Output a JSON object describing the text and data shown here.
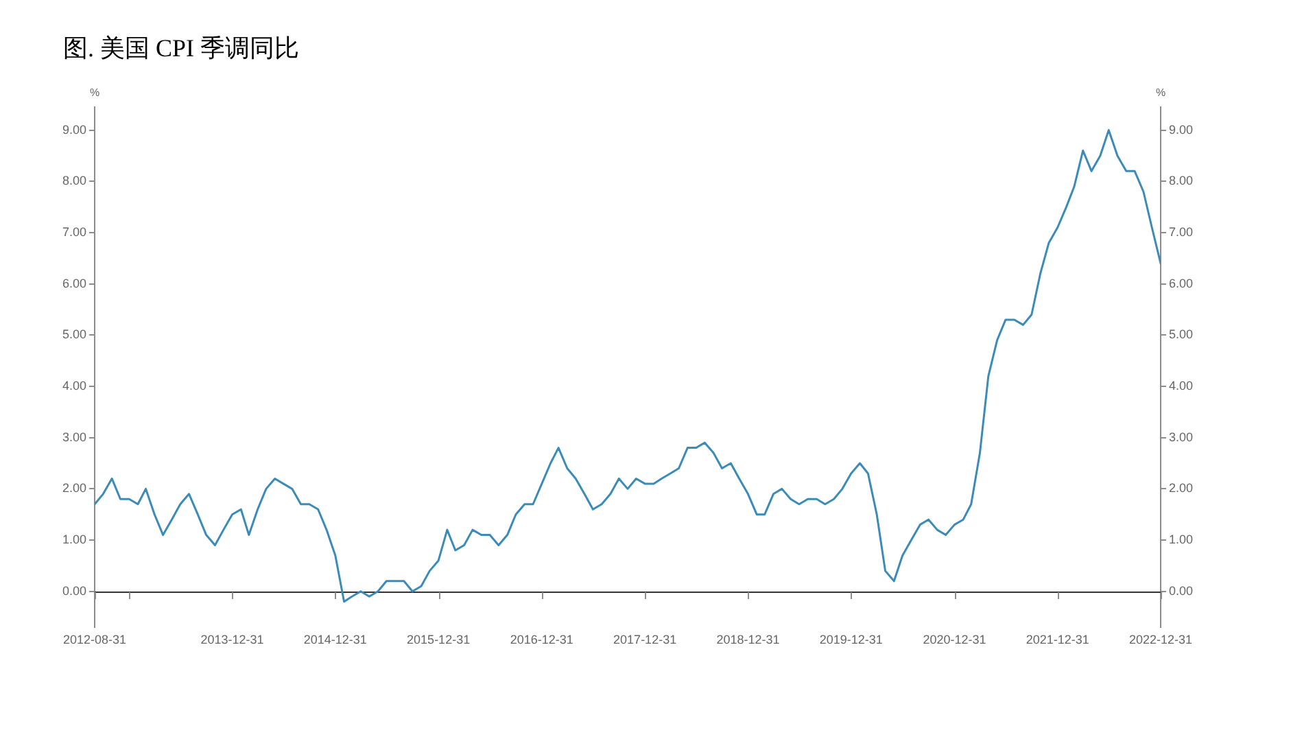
{
  "chart_data": {
    "type": "line",
    "title": "图. 美国 CPI 季调同比",
    "ylabel": "%",
    "y2label": "%",
    "x": [
      "2012-08-31",
      "2012-09-30",
      "2012-10-31",
      "2012-11-30",
      "2012-12-31",
      "2013-01-31",
      "2013-02-28",
      "2013-03-31",
      "2013-04-30",
      "2013-05-31",
      "2013-06-30",
      "2013-07-31",
      "2013-08-31",
      "2013-09-30",
      "2013-10-31",
      "2013-11-30",
      "2013-12-31",
      "2014-01-31",
      "2014-02-28",
      "2014-03-31",
      "2014-04-30",
      "2014-05-31",
      "2014-06-30",
      "2014-07-31",
      "2014-08-31",
      "2014-09-30",
      "2014-10-31",
      "2014-11-30",
      "2014-12-31",
      "2015-01-31",
      "2015-02-28",
      "2015-03-31",
      "2015-04-30",
      "2015-05-31",
      "2015-06-30",
      "2015-07-31",
      "2015-08-31",
      "2015-09-30",
      "2015-10-31",
      "2015-11-30",
      "2015-12-31",
      "2016-01-31",
      "2016-02-29",
      "2016-03-31",
      "2016-04-30",
      "2016-05-31",
      "2016-06-30",
      "2016-07-31",
      "2016-08-31",
      "2016-09-30",
      "2016-10-31",
      "2016-11-30",
      "2016-12-31",
      "2017-01-31",
      "2017-02-28",
      "2017-03-31",
      "2017-04-30",
      "2017-05-31",
      "2017-06-30",
      "2017-07-31",
      "2017-08-31",
      "2017-09-30",
      "2017-10-31",
      "2017-11-30",
      "2017-12-31",
      "2018-01-31",
      "2018-02-28",
      "2018-03-31",
      "2018-04-30",
      "2018-05-31",
      "2018-06-30",
      "2018-07-31",
      "2018-08-31",
      "2018-09-30",
      "2018-10-31",
      "2018-11-30",
      "2018-12-31",
      "2019-01-31",
      "2019-02-28",
      "2019-03-31",
      "2019-04-30",
      "2019-05-31",
      "2019-06-30",
      "2019-07-31",
      "2019-08-31",
      "2019-09-30",
      "2019-10-31",
      "2019-11-30",
      "2019-12-31",
      "2020-01-31",
      "2020-02-29",
      "2020-03-31",
      "2020-04-30",
      "2020-05-31",
      "2020-06-30",
      "2020-07-31",
      "2020-08-31",
      "2020-09-30",
      "2020-10-31",
      "2020-11-30",
      "2020-12-31",
      "2021-01-31",
      "2021-02-28",
      "2021-03-31",
      "2021-04-30",
      "2021-05-31",
      "2021-06-30",
      "2021-07-31",
      "2021-08-31",
      "2021-09-30",
      "2021-10-31",
      "2021-11-30",
      "2021-12-31",
      "2022-01-31",
      "2022-02-28",
      "2022-03-31",
      "2022-04-30",
      "2022-05-31",
      "2022-06-30",
      "2022-07-31",
      "2022-08-31",
      "2022-09-30",
      "2022-10-31",
      "2022-11-30",
      "2022-12-31"
    ],
    "series": [
      {
        "color": "#3b8bba",
        "values": [
          1.7,
          1.9,
          2.2,
          1.8,
          1.8,
          1.7,
          2.0,
          1.5,
          1.1,
          1.4,
          1.7,
          1.9,
          1.5,
          1.1,
          0.9,
          1.2,
          1.5,
          1.6,
          1.1,
          1.6,
          2.0,
          2.2,
          2.1,
          2.0,
          1.7,
          1.7,
          1.6,
          1.2,
          0.7,
          -0.2,
          -0.1,
          0.0,
          -0.1,
          0.0,
          0.2,
          0.2,
          0.2,
          0.0,
          0.1,
          0.4,
          0.6,
          1.2,
          0.8,
          0.9,
          1.2,
          1.1,
          1.1,
          0.9,
          1.1,
          1.5,
          1.7,
          1.7,
          2.1,
          2.5,
          2.8,
          2.4,
          2.2,
          1.9,
          1.6,
          1.7,
          1.9,
          2.2,
          2.0,
          2.2,
          2.1,
          2.1,
          2.2,
          2.3,
          2.4,
          2.8,
          2.8,
          2.9,
          2.7,
          2.4,
          2.5,
          2.2,
          1.9,
          1.5,
          1.5,
          1.9,
          2.0,
          1.8,
          1.7,
          1.8,
          1.8,
          1.7,
          1.8,
          2.0,
          2.3,
          2.5,
          2.3,
          1.5,
          0.4,
          0.2,
          0.7,
          1.0,
          1.3,
          1.4,
          1.2,
          1.1,
          1.3,
          1.4,
          1.7,
          2.7,
          4.2,
          4.9,
          5.3,
          5.3,
          5.2,
          5.4,
          6.2,
          6.8,
          7.1,
          7.5,
          7.9,
          8.6,
          8.2,
          8.5,
          9.0,
          8.5,
          8.2,
          8.2,
          7.8,
          7.1,
          6.4
        ]
      }
    ],
    "xlim": [
      "2012-08-31",
      "2022-12-31"
    ],
    "xticks": [
      "2012-08-31",
      {
        "value": "2012-12-31",
        "label": null
      },
      "2013-12-31",
      "2014-12-31",
      "2015-12-31",
      "2016-12-31",
      "2017-12-31",
      "2018-12-31",
      "2019-12-31",
      "2020-12-31",
      "2021-12-31",
      "2022-12-31"
    ],
    "ylim": [
      -0.7,
      9.45
    ],
    "yticks": [
      {
        "value": 0,
        "label": "0.00"
      },
      {
        "value": 1,
        "label": "1.00"
      },
      {
        "value": 2,
        "label": "2.00"
      },
      {
        "value": 3,
        "label": "3.00"
      },
      {
        "value": 4,
        "label": "4.00"
      },
      {
        "value": 5,
        "label": "5.00"
      },
      {
        "value": 6,
        "label": "6.00"
      },
      {
        "value": 7,
        "label": "7.00"
      },
      {
        "value": 8,
        "label": "8.00"
      },
      {
        "value": 9,
        "label": "9.00"
      }
    ],
    "y2lim": [
      -0.7,
      9.45
    ],
    "y2ticks": [
      {
        "value": 0,
        "label": "0.00"
      },
      {
        "value": 1,
        "label": "1.00"
      },
      {
        "value": 2,
        "label": "2.00"
      },
      {
        "value": 3,
        "label": "3.00"
      },
      {
        "value": 4,
        "label": "4.00"
      },
      {
        "value": 5,
        "label": "5.00"
      },
      {
        "value": 6,
        "label": "6.00"
      },
      {
        "value": 7,
        "label": "7.00"
      },
      {
        "value": 8,
        "label": "8.00"
      },
      {
        "value": 9,
        "label": "9.00"
      }
    ],
    "marker": "none",
    "line_style": "solid"
  }
}
